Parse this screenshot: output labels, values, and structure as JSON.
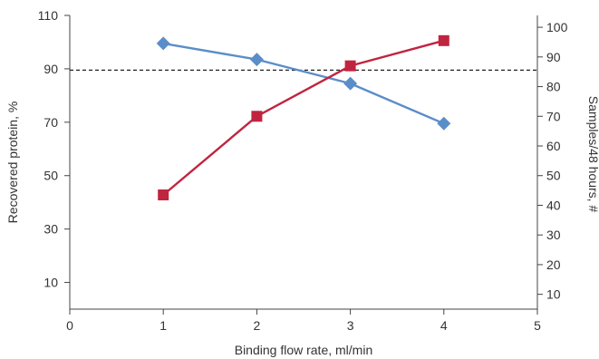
{
  "chart_data": {
    "type": "line",
    "xlabel": "Binding flow rate, ml/min",
    "ylabel_left": "Recovered protein, %",
    "ylabel_right": "Samples/48 hours, #",
    "xlim": [
      0,
      5
    ],
    "ylim_left": [
      0,
      110
    ],
    "ylim_right": [
      5,
      104
    ],
    "x_ticks": [
      0,
      1,
      2,
      3,
      4,
      5
    ],
    "y_left_ticks": [
      10,
      30,
      50,
      70,
      90,
      110
    ],
    "y_right_ticks": [
      10,
      20,
      30,
      40,
      50,
      60,
      70,
      80,
      90,
      100
    ],
    "reference_line": {
      "y_left": 89.5,
      "style": "dashed",
      "color": "#222222"
    },
    "grid": false,
    "series": [
      {
        "axis": "left",
        "marker": "diamond",
        "color": "#5b8dc9",
        "x": [
          1,
          2,
          3,
          4
        ],
        "y": [
          99.5,
          93.5,
          84.5,
          69.5
        ]
      },
      {
        "axis": "right",
        "marker": "square",
        "color": "#c0243f",
        "x": [
          1,
          2,
          3,
          4
        ],
        "y": [
          43.5,
          70,
          87,
          95.5
        ]
      }
    ]
  }
}
